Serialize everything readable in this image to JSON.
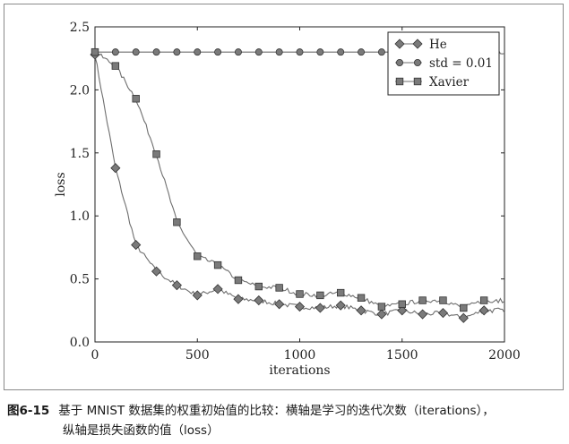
{
  "chart_data": {
    "type": "line",
    "xlabel": "iterations",
    "ylabel": "loss",
    "xlim": [
      0,
      2000
    ],
    "ylim": [
      0,
      2.5
    ],
    "xticks": [
      0,
      500,
      1000,
      1500,
      2000
    ],
    "yticks": [
      0.0,
      0.5,
      1.0,
      1.5,
      2.0,
      2.5
    ],
    "xtick_labels": [
      "0",
      "500",
      "1000",
      "1500",
      "2000"
    ],
    "ytick_labels": [
      "0.0",
      "0.5",
      "1.0",
      "1.5",
      "2.0",
      "2.5"
    ],
    "legend_position": "top-right",
    "series": [
      {
        "name": "He",
        "marker": "diamond",
        "x": [
          0,
          100,
          200,
          300,
          400,
          500,
          600,
          700,
          800,
          900,
          1000,
          1100,
          1200,
          1300,
          1400,
          1500,
          1600,
          1700,
          1800,
          1900
        ],
        "values": [
          2.28,
          1.38,
          0.77,
          0.56,
          0.45,
          0.37,
          0.42,
          0.34,
          0.33,
          0.3,
          0.28,
          0.27,
          0.29,
          0.25,
          0.22,
          0.25,
          0.22,
          0.23,
          0.19,
          0.25
        ]
      },
      {
        "name": "std = 0.01",
        "marker": "circle",
        "x": [
          0,
          100,
          200,
          300,
          400,
          500,
          600,
          700,
          800,
          900,
          1000,
          1100,
          1200,
          1300,
          1400,
          1500,
          1600,
          1700,
          1800,
          1900
        ],
        "values": [
          2.3,
          2.3,
          2.3,
          2.3,
          2.3,
          2.3,
          2.3,
          2.3,
          2.3,
          2.3,
          2.3,
          2.3,
          2.3,
          2.3,
          2.3,
          2.3,
          2.3,
          2.3,
          2.3,
          2.3
        ]
      },
      {
        "name": "Xavier",
        "marker": "square",
        "x": [
          0,
          100,
          200,
          300,
          400,
          500,
          600,
          700,
          800,
          900,
          1000,
          1100,
          1200,
          1300,
          1400,
          1500,
          1600,
          1700,
          1800,
          1900
        ],
        "values": [
          2.3,
          2.19,
          1.93,
          1.49,
          0.95,
          0.68,
          0.61,
          0.49,
          0.44,
          0.43,
          0.38,
          0.37,
          0.39,
          0.35,
          0.28,
          0.3,
          0.33,
          0.33,
          0.27,
          0.33
        ]
      }
    ],
    "colors": {
      "line": "#6e6e6e",
      "marker": "#7a7a7a",
      "marker_stroke": "#333333",
      "axis": "#222222"
    }
  },
  "caption": {
    "figure_number": "图6-15",
    "line1": "基于 MNIST 数据集的权重初始值的比较：横轴是学习的迭代次数（iterations），",
    "line2": "纵轴是损失函数的值（loss）"
  }
}
